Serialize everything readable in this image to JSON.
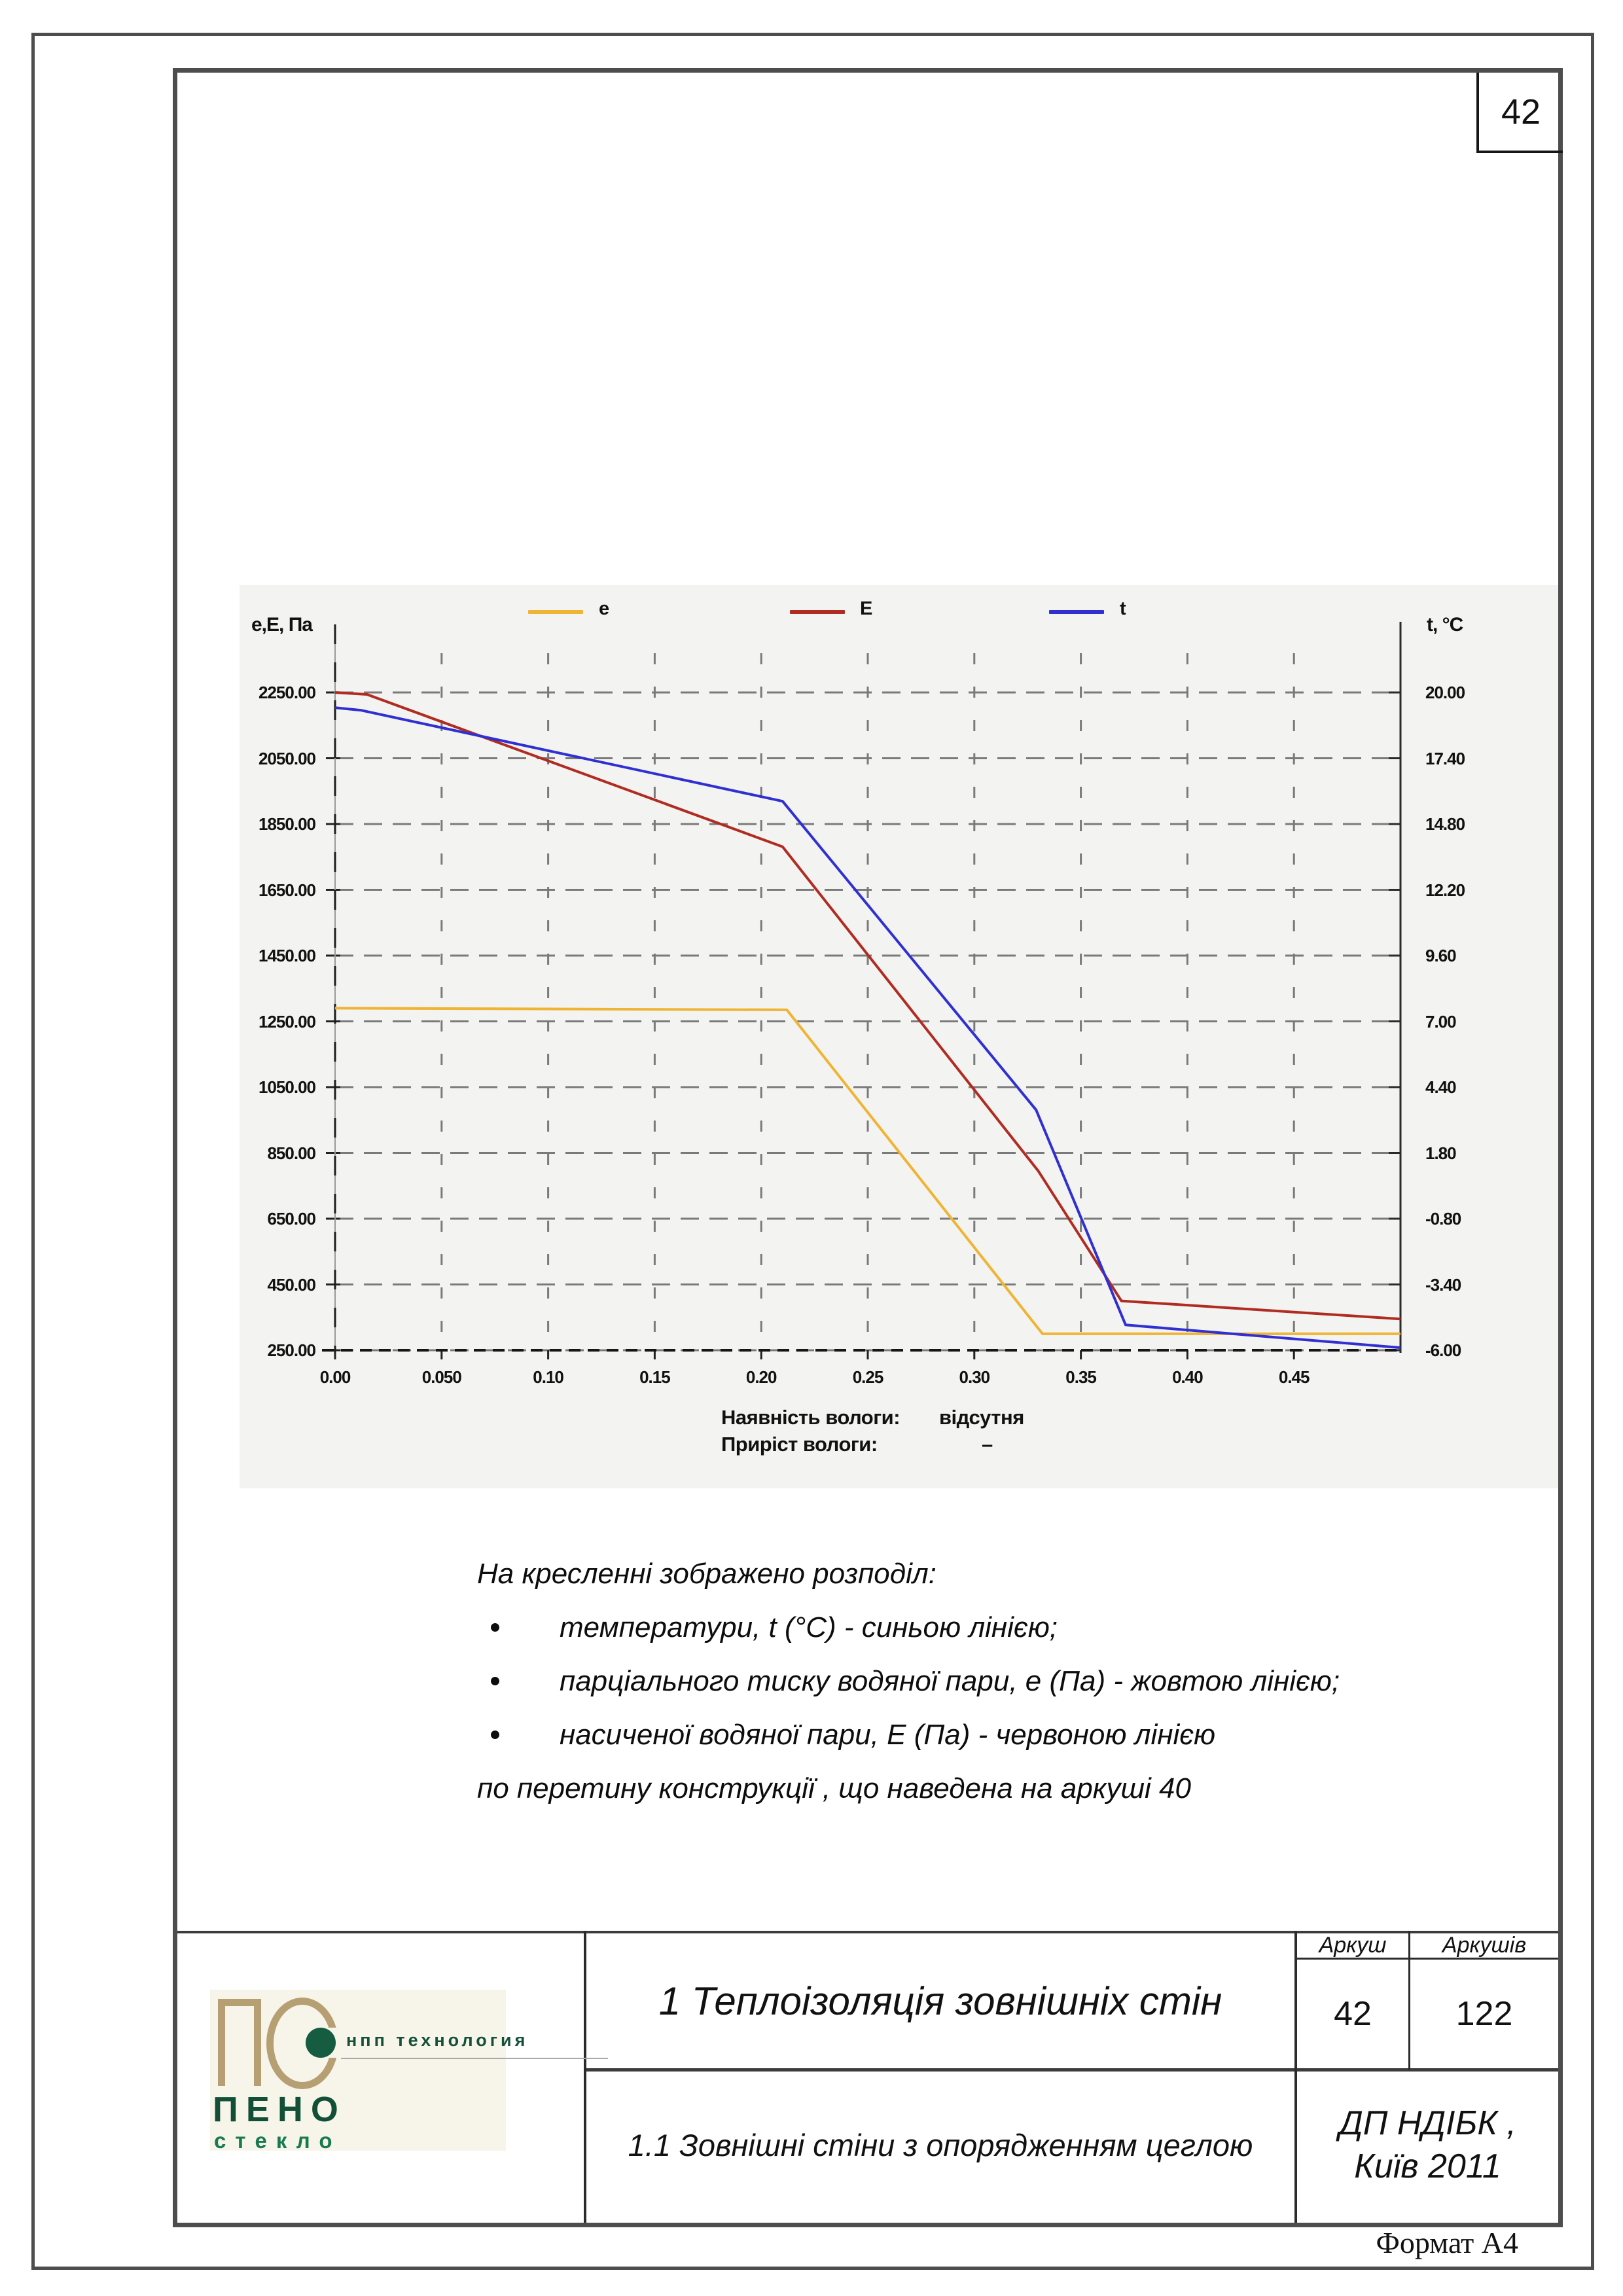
{
  "page": {
    "number": "42",
    "format_note": "Формат А4"
  },
  "chart": {
    "y_axis_left_label": "e,E, Па",
    "y_axis_right_label": "t, °C",
    "moisture": {
      "presence_label": "Наявність вологи:",
      "presence_value": "відсутня",
      "gain_label": "Приріст вологи:",
      "gain_value": "–"
    }
  },
  "chart_data": {
    "type": "line",
    "title": "",
    "legend_position": "top",
    "grid": true,
    "x_axis": {
      "range": [
        0,
        0.5
      ],
      "tick_values": [
        0,
        0.05,
        0.1,
        0.15,
        0.2,
        0.25,
        0.3,
        0.35,
        0.4,
        0.45
      ],
      "tick_labels": [
        "0.00",
        "0.050",
        "0.10",
        "0.15",
        "0.20",
        "0.25",
        "0.30",
        "0.35",
        "0.40",
        "0.45"
      ]
    },
    "y_axis_left": {
      "label": "e,E, Па",
      "range": [
        250,
        2250
      ],
      "tick_labels": [
        "2250.00",
        "2050.00",
        "1850.00",
        "1650.00",
        "1450.00",
        "1250.00",
        "1050.00",
        "850.00",
        "650.00",
        "450.00",
        "250.00"
      ]
    },
    "y_axis_right": {
      "label": "t, °C",
      "range": [
        -6,
        20
      ],
      "tick_labels": [
        "20.00",
        "17.40",
        "14.80",
        "12.20",
        "9.60",
        "7.00",
        "4.40",
        "1.80",
        "-0.80",
        "-3.40",
        "-6.00"
      ]
    },
    "series": [
      {
        "name": "e",
        "color": "#f0b434",
        "axis": "left",
        "points": [
          [
            0,
            1290
          ],
          [
            0.212,
            1285
          ],
          [
            0.332,
            300
          ],
          [
            0.5,
            300
          ]
        ]
      },
      {
        "name": "E",
        "color": "#b02c22",
        "axis": "left",
        "points": [
          [
            0,
            2250
          ],
          [
            0.015,
            2244
          ],
          [
            0.21,
            1781
          ],
          [
            0.33,
            795
          ],
          [
            0.369,
            400
          ],
          [
            0.5,
            345
          ]
        ]
      },
      {
        "name": "t",
        "color": "#3030d2",
        "axis": "right",
        "points": [
          [
            0,
            19.4
          ],
          [
            0.012,
            19.3
          ],
          [
            0.21,
            15.7
          ],
          [
            0.329,
            3.5
          ],
          [
            0.371,
            -5.0
          ],
          [
            0.5,
            -5.9
          ]
        ]
      }
    ]
  },
  "description": {
    "intro": "На кресленні зображено розподіл:",
    "bullets": [
      "температури, t (°C) - синьою лінією;",
      "парціального тиску водяної пари, е (Па) - жовтою лінією;",
      "насиченої водяної пари, Е (Па) - червоною лінією"
    ],
    "footer": "по перетину конструкції , що наведена на аркуші 40"
  },
  "title_block": {
    "section_title": "1 Теплоізоляція зовнішніх стін",
    "subsection_title": "1.1 Зовнішні стіни з опорядженням цеглою",
    "sheet_col_label": "Аркуш",
    "sheets_col_label": "Аркушів",
    "sheet_number": "42",
    "sheets_total": "122",
    "org_line1": "ДП НДІБК ,",
    "org_line2": "Київ 2011",
    "logo": {
      "company_type": "нпп  технология",
      "brand_top": "ПЕНО",
      "brand_bottom": "стекло"
    }
  }
}
